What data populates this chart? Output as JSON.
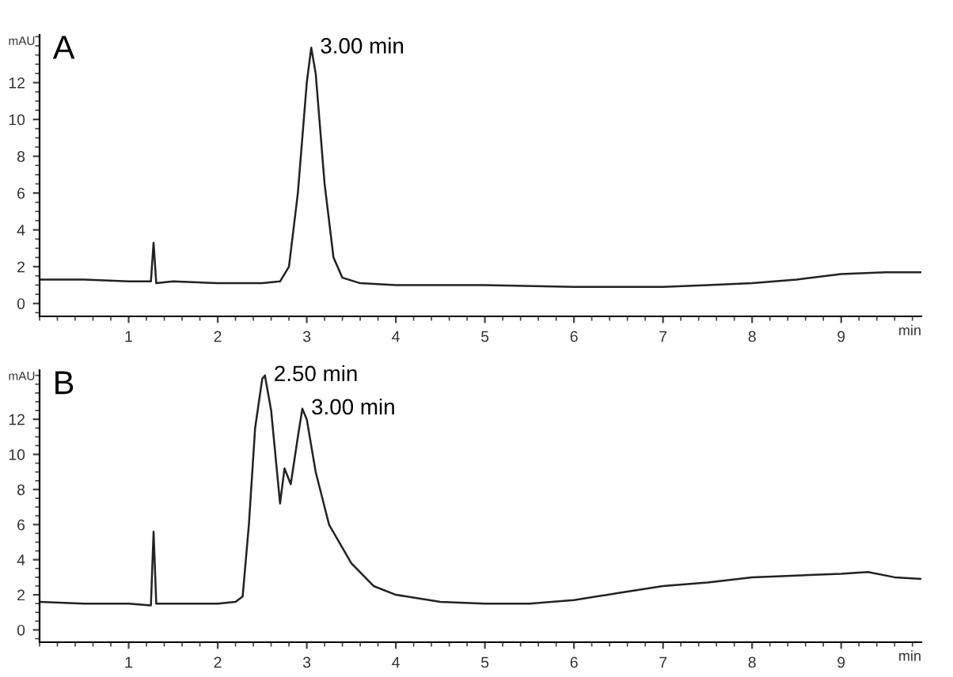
{
  "chart_data": [
    {
      "type": "line",
      "title": "A",
      "xlabel": "min",
      "ylabel": "mAU",
      "xlim": [
        0,
        9.9
      ],
      "ylim": [
        -0.7,
        14.6
      ],
      "xticks": [
        1,
        2,
        3,
        4,
        5,
        6,
        7,
        8,
        9
      ],
      "yticks": [
        0,
        2,
        4,
        6,
        8,
        10,
        12
      ],
      "grid": false,
      "legend": false,
      "marker": "none",
      "line_style": "solid",
      "series": [
        {
          "color": "#222222",
          "x": [
            0,
            0.5,
            1.0,
            1.25,
            1.28,
            1.31,
            1.5,
            2.0,
            2.5,
            2.7,
            2.8,
            2.9,
            3.0,
            3.05,
            3.1,
            3.2,
            3.3,
            3.4,
            3.6,
            4.0,
            5.0,
            6.0,
            7.0,
            7.5,
            8.0,
            8.5,
            9.0,
            9.5,
            9.9
          ],
          "values": [
            1.3,
            1.3,
            1.2,
            1.2,
            3.3,
            1.1,
            1.2,
            1.1,
            1.1,
            1.2,
            2.0,
            6.0,
            12.0,
            13.9,
            12.5,
            6.5,
            2.5,
            1.4,
            1.1,
            1.0,
            1.0,
            0.9,
            0.9,
            1.0,
            1.1,
            1.3,
            1.6,
            1.7,
            1.7
          ]
        }
      ],
      "annotations": [
        {
          "text": "3.00 min",
          "x": 3.05,
          "y": 13.9
        }
      ]
    },
    {
      "type": "line",
      "title": "B",
      "xlabel": "min",
      "ylabel": "mAU",
      "xlim": [
        0,
        9.9
      ],
      "ylim": [
        -0.7,
        14.8
      ],
      "xticks": [
        1,
        2,
        3,
        4,
        5,
        6,
        7,
        8,
        9
      ],
      "yticks": [
        0,
        2,
        4,
        6,
        8,
        10,
        12
      ],
      "grid": false,
      "legend": false,
      "marker": "none",
      "line_style": "solid",
      "series": [
        {
          "color": "#222222",
          "x": [
            0,
            0.5,
            1.0,
            1.25,
            1.28,
            1.31,
            1.5,
            2.0,
            2.2,
            2.28,
            2.35,
            2.42,
            2.5,
            2.53,
            2.6,
            2.7,
            2.75,
            2.82,
            2.9,
            2.95,
            3.0,
            3.1,
            3.25,
            3.5,
            3.75,
            4.0,
            4.5,
            5.0,
            5.5,
            6.0,
            6.5,
            7.0,
            7.5,
            8.0,
            8.5,
            9.0,
            9.3,
            9.6,
            9.9
          ],
          "values": [
            1.6,
            1.5,
            1.5,
            1.4,
            5.6,
            1.5,
            1.5,
            1.5,
            1.6,
            1.9,
            6.0,
            11.5,
            14.3,
            14.5,
            12.5,
            7.2,
            9.2,
            8.3,
            11.0,
            12.6,
            12.0,
            9.0,
            6.0,
            3.8,
            2.5,
            2.0,
            1.6,
            1.5,
            1.5,
            1.7,
            2.1,
            2.5,
            2.7,
            3.0,
            3.1,
            3.2,
            3.3,
            3.0,
            2.9
          ]
        }
      ],
      "annotations": [
        {
          "text": "2.50 min",
          "x": 2.53,
          "y": 14.5
        },
        {
          "text": "3.00 min",
          "x": 2.95,
          "y": 12.6
        }
      ]
    }
  ]
}
